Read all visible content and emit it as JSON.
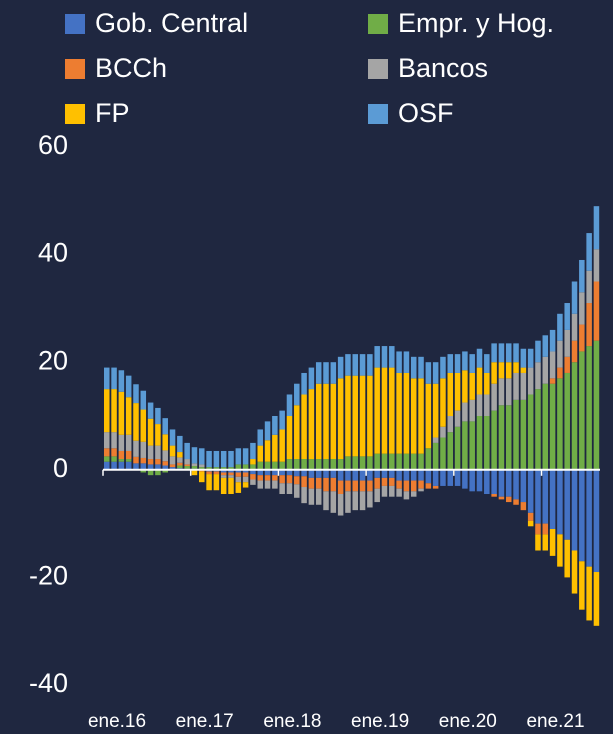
{
  "chart_data": {
    "type": "stacked_bar",
    "categories": [
      "ene.16",
      null,
      null,
      null,
      null,
      null,
      null,
      null,
      null,
      null,
      null,
      null,
      "ene.17",
      null,
      null,
      null,
      null,
      null,
      null,
      null,
      null,
      null,
      null,
      null,
      "ene.18",
      null,
      null,
      null,
      null,
      null,
      null,
      null,
      null,
      null,
      null,
      null,
      "ene.19",
      null,
      null,
      null,
      null,
      null,
      null,
      null,
      null,
      null,
      null,
      null,
      "ene.20",
      null,
      null,
      null,
      null,
      null,
      null,
      null,
      null,
      null,
      null,
      null,
      "ene.21",
      null,
      null,
      null,
      null,
      null,
      null,
      null
    ],
    "ylim": [
      -40,
      60
    ],
    "yticks": [
      -40,
      -20,
      0,
      20,
      40,
      60
    ],
    "series": [
      {
        "name": "Gob. Central",
        "color": "#4472c4",
        "values": [
          1.5,
          1.5,
          1.5,
          1.5,
          1.2,
          1.2,
          1,
          1,
          0.8,
          0.5,
          0.3,
          0.2,
          0.2,
          0,
          -0.3,
          -0.3,
          -0.5,
          -0.5,
          -0.5,
          -0.5,
          -0.8,
          -1,
          -1,
          -1,
          -1,
          -1,
          -1.2,
          -1.2,
          -1.5,
          -1.5,
          -1.5,
          -1.5,
          -2,
          -2,
          -2,
          -2,
          -2,
          -1.5,
          -1.5,
          -1.5,
          -2,
          -2,
          -2,
          -2,
          -2.5,
          -3,
          -3,
          -3,
          -3,
          -3.5,
          -4,
          -4,
          -4.5,
          -4.5,
          -5,
          -5,
          -5.5,
          -6,
          -8,
          -10,
          -10,
          -11,
          -12,
          -13,
          -15,
          -17,
          -18,
          -19
        ]
      },
      {
        "name": "Empr. y Hog.",
        "color": "#70ad47",
        "values": [
          1,
          1,
          0.5,
          0.5,
          0,
          -0.5,
          -1,
          -1,
          -0.5,
          0,
          0.5,
          0.5,
          0.5,
          0.5,
          0.5,
          0.5,
          0.5,
          0.5,
          1,
          1,
          1,
          1.5,
          1.5,
          1.5,
          1.5,
          2,
          2,
          2,
          2,
          2,
          2,
          2,
          2,
          2.5,
          2.5,
          2.5,
          2.5,
          3,
          3,
          3,
          3,
          3,
          3,
          3,
          4,
          5,
          6,
          7,
          8,
          9,
          9,
          10,
          10,
          11,
          12,
          12,
          13,
          13,
          14,
          15,
          16,
          16,
          17,
          18,
          20,
          22,
          23,
          24
        ]
      },
      {
        "name": "BCCh",
        "color": "#ed7d31",
        "values": [
          1.5,
          1.5,
          1.5,
          1.5,
          1.2,
          1,
          1,
          1,
          0.8,
          0.5,
          0.5,
          0.3,
          0,
          -0.3,
          -0.5,
          -0.5,
          -0.5,
          -0.5,
          -0.8,
          -0.8,
          -1,
          -1,
          -1,
          -1,
          -1.5,
          -1.5,
          -1.5,
          -2,
          -2,
          -2,
          -2.5,
          -2.5,
          -2.5,
          -2,
          -2,
          -2,
          -2,
          -2,
          -1.5,
          -1.5,
          -1.5,
          -2,
          -2,
          -1.5,
          -1,
          -0.5,
          0,
          0,
          0,
          0,
          0,
          0,
          0,
          -0.5,
          -0.5,
          -1,
          -1,
          -1.5,
          -1.5,
          -2,
          -2,
          1,
          2,
          3,
          4,
          5,
          8,
          11
        ]
      },
      {
        "name": "Bancos",
        "color": "#a5a5a5",
        "values": [
          3,
          3,
          3,
          3,
          3,
          3,
          2.5,
          2.5,
          2,
          1.5,
          1,
          1,
          0.5,
          0.5,
          0,
          0,
          -0.5,
          -0.5,
          -1,
          -1,
          -1,
          -1.5,
          -1.5,
          -1.5,
          -2,
          -2,
          -2.5,
          -3,
          -3,
          -3,
          -3.5,
          -4,
          -4,
          -4,
          -3.5,
          -3.5,
          -3,
          -2.5,
          -2,
          -2,
          -1.5,
          -1.5,
          -1,
          -0.5,
          0,
          1,
          2,
          3,
          3,
          3.5,
          4,
          4,
          4,
          5,
          5,
          5,
          5,
          5,
          5,
          5,
          5,
          5,
          5,
          5,
          5,
          6,
          6,
          6
        ]
      },
      {
        "name": "FP",
        "color": "#ffc000",
        "values": [
          8,
          8,
          8,
          7,
          7,
          6,
          5,
          4,
          3,
          2,
          1,
          0,
          -1,
          -2,
          -3,
          -3,
          -3,
          -3,
          -2,
          -1,
          1,
          3,
          4,
          5,
          6,
          8,
          10,
          12,
          13,
          14,
          14,
          14,
          15,
          15,
          15,
          15,
          15,
          16,
          16,
          16,
          15,
          15,
          14,
          14,
          12,
          10,
          9,
          8,
          7,
          6,
          5,
          5,
          4,
          4,
          3,
          3,
          2,
          1,
          -1,
          -3,
          -3,
          -5,
          -6,
          -7,
          -8,
          -9,
          -10,
          -10
        ]
      },
      {
        "name": "OSF",
        "color": "#5b9bd5",
        "values": [
          4,
          4,
          4,
          4,
          3.5,
          3.5,
          3,
          3,
          3,
          3,
          3,
          3,
          3,
          3,
          3,
          3,
          3,
          3,
          3,
          3,
          3,
          3,
          3.5,
          3.5,
          3.5,
          4,
          4,
          4,
          4,
          4,
          4,
          4,
          4,
          4,
          4,
          4,
          4,
          4,
          4,
          4,
          4,
          4,
          4,
          4,
          4,
          4,
          4,
          3.5,
          3.5,
          3.5,
          3.5,
          3.5,
          3.5,
          3.5,
          3.5,
          3.5,
          3.5,
          3.5,
          3.5,
          4,
          4,
          4,
          5,
          5,
          6,
          6,
          7,
          8
        ]
      }
    ]
  }
}
